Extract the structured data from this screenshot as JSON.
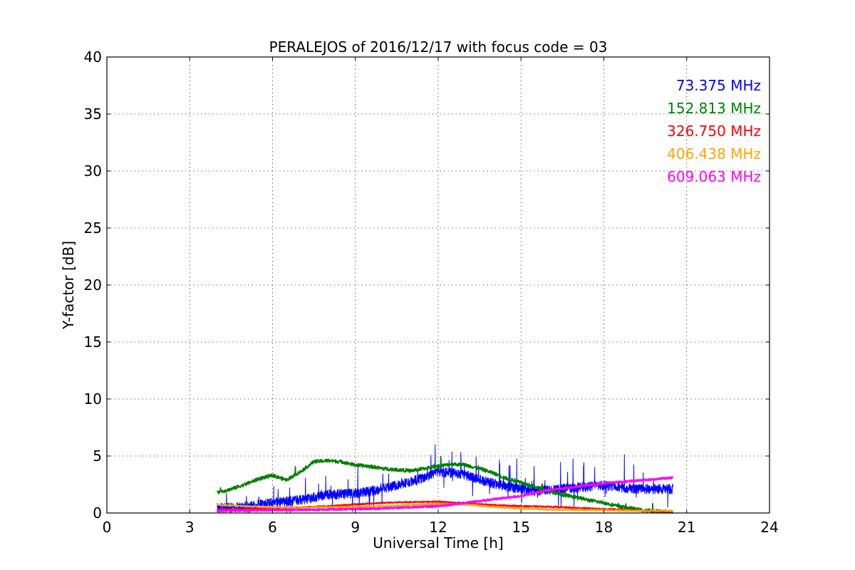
{
  "chart_data": {
    "type": "line",
    "title": "PERALEJOS of 2016/12/17 with focus code = 03",
    "xlabel": "Universal Time [h]",
    "ylabel": "Y-factor [dB]",
    "xlim": [
      0,
      24
    ],
    "ylim": [
      0,
      40
    ],
    "xticks": [
      0,
      3,
      6,
      9,
      12,
      15,
      18,
      21,
      24
    ],
    "yticks": [
      0,
      5,
      10,
      15,
      20,
      25,
      30,
      35,
      40
    ],
    "grid": true,
    "legend_position": "top-right",
    "series": [
      {
        "name": "73.375 MHz",
        "color": "#0000ff",
        "noise": 0.55,
        "x": [
          4.0,
          5.0,
          6.0,
          7.0,
          8.0,
          9.0,
          10.0,
          11.0,
          11.5,
          12.0,
          12.5,
          13.0,
          13.5,
          14.0,
          14.5,
          15.0,
          15.5,
          16.0,
          17.0,
          18.0,
          19.0,
          20.0,
          20.5
        ],
        "y": [
          0.3,
          0.4,
          0.8,
          1.0,
          1.5,
          1.6,
          2.0,
          2.6,
          3.0,
          3.5,
          3.4,
          3.2,
          2.8,
          2.5,
          2.2,
          2.0,
          1.8,
          1.9,
          2.1,
          2.3,
          2.0,
          2.0,
          2.0
        ]
      },
      {
        "name": "152.813 MHz",
        "color": "#008000",
        "noise": 0.15,
        "x": [
          4.0,
          4.5,
          5.0,
          5.5,
          6.0,
          6.5,
          7.0,
          7.5,
          8.0,
          8.5,
          9.0,
          9.5,
          10.0,
          10.5,
          11.0,
          11.5,
          12.0,
          12.5,
          13.0,
          13.5,
          14.0,
          14.5,
          15.0,
          15.5,
          16.0,
          16.5,
          17.0,
          17.5,
          18.0,
          18.5,
          19.0,
          19.5,
          20.0,
          20.5
        ],
        "y": [
          1.8,
          2.1,
          2.5,
          3.0,
          3.3,
          2.9,
          3.6,
          4.5,
          4.6,
          4.5,
          4.2,
          4.1,
          3.9,
          3.8,
          3.7,
          3.9,
          4.1,
          4.3,
          4.2,
          3.9,
          3.5,
          3.0,
          2.7,
          2.3,
          1.9,
          1.6,
          1.4,
          1.1,
          0.9,
          0.6,
          0.4,
          0.2,
          0.15,
          0.1
        ]
      },
      {
        "name": "326.750 MHz",
        "color": "#ff0000",
        "noise": 0.06,
        "x": [
          4.0,
          6.0,
          8.0,
          10.0,
          12.0,
          13.0,
          14.0,
          15.0,
          16.0,
          17.0,
          18.0,
          19.0,
          20.0,
          20.5
        ],
        "y": [
          0.3,
          0.4,
          0.6,
          0.9,
          1.0,
          0.85,
          0.7,
          0.6,
          0.55,
          0.45,
          0.35,
          0.25,
          0.15,
          0.1
        ]
      },
      {
        "name": "406.438 MHz",
        "color": "#ffa500",
        "noise": 0.06,
        "x": [
          4.0,
          5.0,
          6.0,
          8.0,
          10.0,
          12.0,
          13.0,
          14.0,
          15.0,
          16.0,
          18.0,
          19.0,
          20.0,
          20.5
        ],
        "y": [
          0.7,
          0.6,
          0.5,
          0.5,
          0.6,
          0.8,
          0.75,
          0.55,
          0.4,
          0.3,
          0.25,
          0.2,
          0.2,
          0.2
        ]
      },
      {
        "name": "609.063 MHz",
        "color": "#ff00ff",
        "noise": 0.08,
        "x": [
          4.0,
          6.0,
          8.0,
          10.0,
          12.0,
          13.0,
          14.0,
          15.0,
          16.0,
          17.0,
          18.0,
          19.0,
          20.0,
          20.5
        ],
        "y": [
          0.2,
          0.25,
          0.3,
          0.4,
          0.6,
          0.9,
          1.2,
          1.5,
          2.0,
          2.3,
          2.6,
          2.8,
          3.0,
          3.1
        ]
      }
    ]
  }
}
